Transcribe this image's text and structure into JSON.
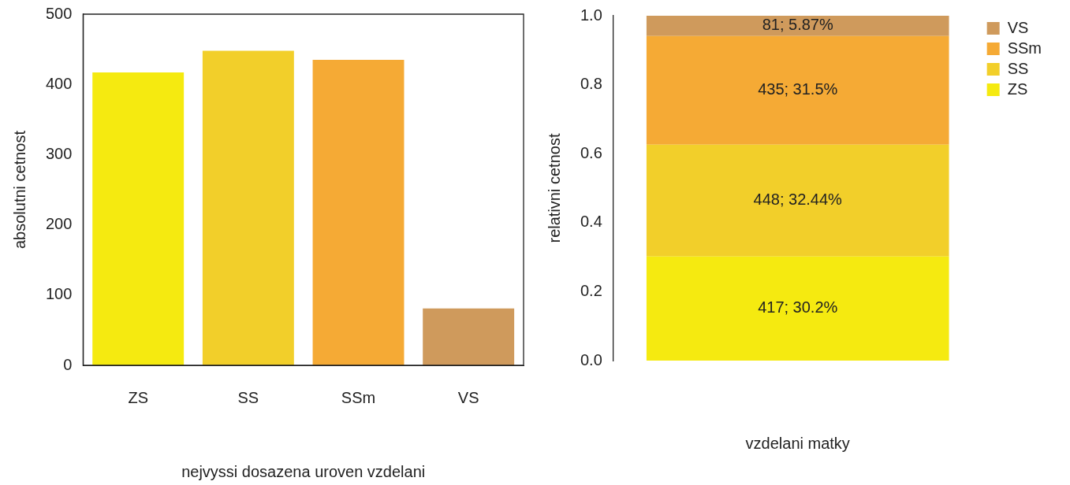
{
  "chart_data": [
    {
      "type": "bar",
      "categories": [
        "ZS",
        "SS",
        "SSm",
        "VS"
      ],
      "values": [
        417,
        448,
        435,
        81
      ],
      "colors": [
        "#f5ea10",
        "#f2cf2a",
        "#f5aa35",
        "#cf9a5c"
      ],
      "xlabel": "nejvyssi dosazena uroven vzdelani",
      "ylabel": "absolutni cetnost",
      "ylim": [
        0,
        500
      ],
      "yticks": [
        0,
        100,
        200,
        300,
        400,
        500
      ],
      "grid": false,
      "legend": false
    },
    {
      "type": "bar",
      "stacked": true,
      "categories": [
        null
      ],
      "series": [
        {
          "name": "ZS",
          "color": "#f5ea10",
          "values": [
            0.302
          ],
          "value_labels": [
            "417; 30.2%"
          ]
        },
        {
          "name": "SS",
          "color": "#f2cf2a",
          "values": [
            0.3244
          ],
          "value_labels": [
            "448; 32.44%"
          ]
        },
        {
          "name": "SSm",
          "color": "#f5aa35",
          "values": [
            0.315
          ],
          "value_labels": [
            "435; 31.5%"
          ]
        },
        {
          "name": "VS",
          "color": "#cf9a5c",
          "values": [
            0.0587
          ],
          "value_labels": [
            "81; 5.87%"
          ]
        }
      ],
      "xlabel": "vzdelani matky",
      "ylabel": "relativni cetnost",
      "ylim": [
        0,
        1
      ],
      "yticks": [
        {
          "value": 0,
          "label": "0.0"
        },
        {
          "value": 0.2,
          "label": "0.2"
        },
        {
          "value": 0.4,
          "label": "0.4"
        },
        {
          "value": 0.6,
          "label": "0.6"
        },
        {
          "value": 0.8,
          "label": "0.8"
        },
        {
          "value": 1,
          "label": "1.0"
        }
      ],
      "grid": false,
      "legend": "top right"
    }
  ]
}
